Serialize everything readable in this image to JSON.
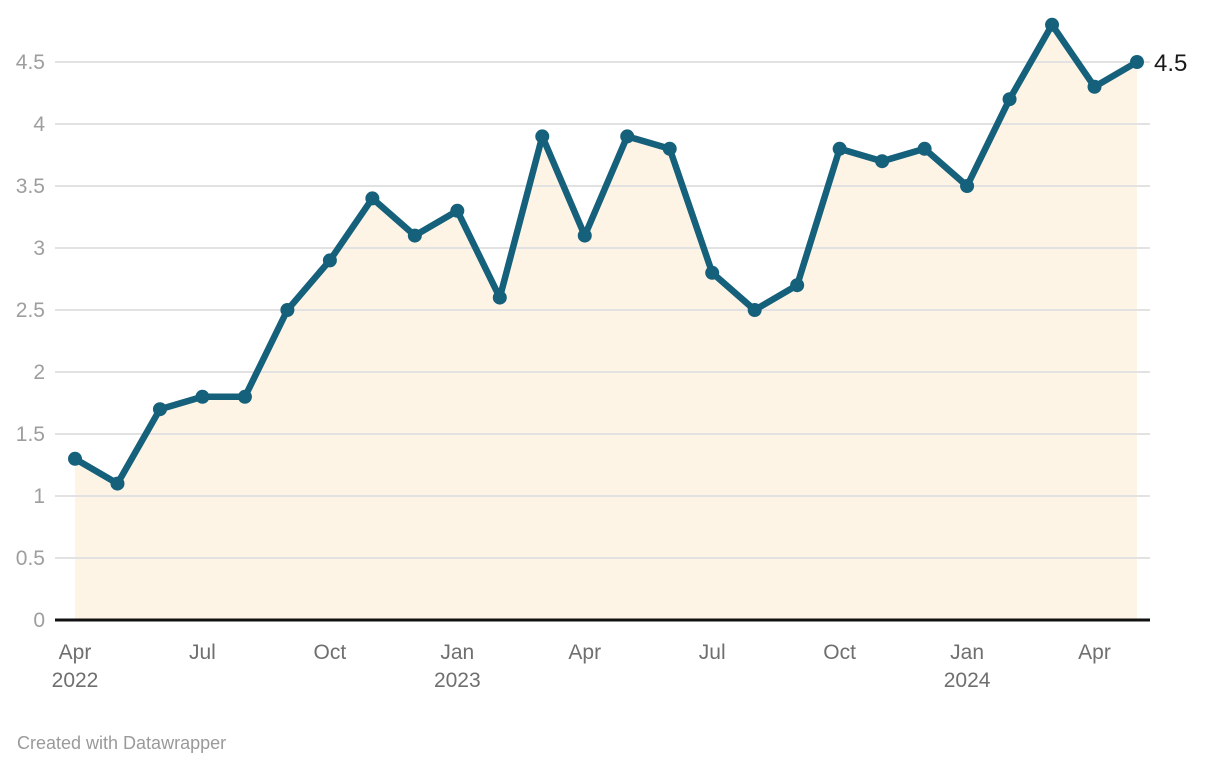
{
  "chart_data": {
    "type": "line",
    "x": [
      "Apr 2022",
      "May 2022",
      "Jun 2022",
      "Jul 2022",
      "Aug 2022",
      "Sep 2022",
      "Oct 2022",
      "Nov 2022",
      "Dec 2022",
      "Jan 2023",
      "Feb 2023",
      "Mar 2023",
      "Apr 2023",
      "May 2023",
      "Jun 2023",
      "Jul 2023",
      "Aug 2023",
      "Sep 2023",
      "Oct 2023",
      "Nov 2023",
      "Dec 2023",
      "Jan 2024",
      "Feb 2024",
      "Mar 2024",
      "Apr 2024",
      "May 2024"
    ],
    "values": [
      1.3,
      1.1,
      1.7,
      1.8,
      1.8,
      2.5,
      2.9,
      3.4,
      3.1,
      3.3,
      2.6,
      3.9,
      3.1,
      3.9,
      3.8,
      2.8,
      2.5,
      2.7,
      3.8,
      3.7,
      3.8,
      3.5,
      4.2,
      4.8,
      4.3,
      4.5
    ],
    "title": "",
    "xlabel": "",
    "ylabel": "",
    "ylim": [
      0,
      4.85
    ],
    "grid": true,
    "legend": "none",
    "area_fill": true,
    "y_ticks": [
      0,
      0.5,
      1,
      1.5,
      2,
      2.5,
      3,
      3.5,
      4,
      4.5
    ],
    "y_tick_labels": [
      "0",
      "0.5",
      "1",
      "1.5",
      "2",
      "2.5",
      "3",
      "3.5",
      "4",
      "4.5"
    ],
    "x_tick_labels": [
      {
        "index": 0,
        "line1": "Apr",
        "line2": "2022"
      },
      {
        "index": 3,
        "line1": "Jul",
        "line2": ""
      },
      {
        "index": 6,
        "line1": "Oct",
        "line2": ""
      },
      {
        "index": 9,
        "line1": "Jan",
        "line2": "2023"
      },
      {
        "index": 12,
        "line1": "Apr",
        "line2": ""
      },
      {
        "index": 15,
        "line1": "Jul",
        "line2": ""
      },
      {
        "index": 18,
        "line1": "Oct",
        "line2": ""
      },
      {
        "index": 21,
        "line1": "Jan",
        "line2": "2024"
      },
      {
        "index": 24,
        "line1": "Apr",
        "line2": ""
      }
    ],
    "end_label": "4.5",
    "colors": {
      "line": "#15607a",
      "point": "#15607a",
      "area": "#fdf4e5",
      "grid": "#e2e2e2",
      "axis": "#111111",
      "y_tick_label": "#9e9e9e",
      "x_tick_label": "#6f6f6f",
      "end_label": "#1a1a1a",
      "background": "#ffffff"
    }
  },
  "footer": {
    "text": "Created with Datawrapper"
  }
}
